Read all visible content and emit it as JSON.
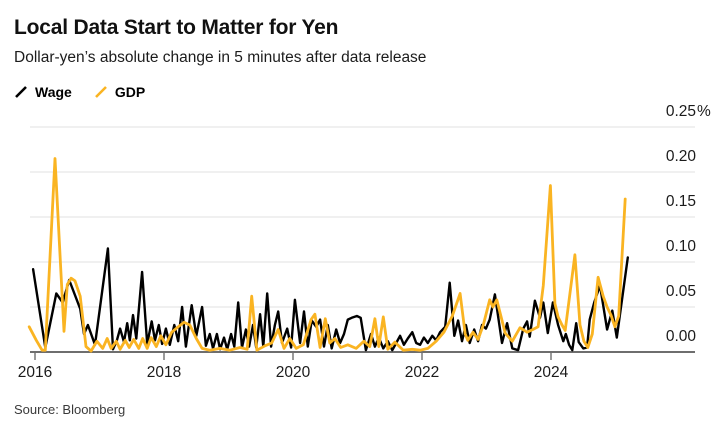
{
  "header": {
    "title": "Local Data Start to Matter for Yen",
    "subtitle": "Dollar-yen’s absolute change in 5 minutes after data release"
  },
  "legend": [
    {
      "label": "Wage",
      "color": "#000000"
    },
    {
      "label": "GDP",
      "color": "#FAB422"
    }
  ],
  "source": "Source: Bloomberg",
  "colors": {
    "wage_line": "#000000",
    "gdp_line": "#FAB422",
    "gridline": "#e2e2e2",
    "axis_line": "#6e6e6e",
    "tick_label": "#1b1b1b"
  },
  "chart_data": {
    "type": "line",
    "title": "Local Data Start to Matter for Yen",
    "subtitle": "Dollar-yen’s absolute change in 5 minutes after data release",
    "unit": "percent",
    "grid": "horizontal-only",
    "legend_position": "top-left",
    "x_axis": {
      "range": [
        2015.88,
        2026.2
      ],
      "ticks": [
        {
          "v": 2016,
          "label": "2016"
        },
        {
          "v": 2018,
          "label": "2018"
        },
        {
          "v": 2020,
          "label": "2020"
        },
        {
          "v": 2022,
          "label": "2022"
        },
        {
          "v": 2024,
          "label": "2024"
        }
      ]
    },
    "y_axis": {
      "range": [
        0,
        0.25
      ],
      "ticks": [
        {
          "v": 0.0,
          "label": "0.00",
          "suffix": ""
        },
        {
          "v": 0.05,
          "label": "0.05",
          "suffix": ""
        },
        {
          "v": 0.1,
          "label": "0.10",
          "suffix": ""
        },
        {
          "v": 0.15,
          "label": "0.15",
          "suffix": ""
        },
        {
          "v": 0.2,
          "label": "0.20",
          "suffix": ""
        },
        {
          "v": 0.25,
          "label": "0.25",
          "suffix": "%"
        }
      ]
    },
    "series": [
      {
        "name": "Wage",
        "color": "#000000",
        "points": [
          [
            2015.97,
            0.092
          ],
          [
            2016.16,
            0.005
          ],
          [
            2016.33,
            0.065
          ],
          [
            2016.43,
            0.055
          ],
          [
            2016.53,
            0.08
          ],
          [
            2016.7,
            0.048
          ],
          [
            2016.76,
            0.02
          ],
          [
            2016.82,
            0.03
          ],
          [
            2016.93,
            0.008
          ],
          [
            2017.13,
            0.115
          ],
          [
            2017.21,
            0.003
          ],
          [
            2017.27,
            0.013
          ],
          [
            2017.32,
            0.026
          ],
          [
            2017.38,
            0.011
          ],
          [
            2017.43,
            0.032
          ],
          [
            2017.47,
            0.013
          ],
          [
            2017.52,
            0.041
          ],
          [
            2017.57,
            0.015
          ],
          [
            2017.66,
            0.089
          ],
          [
            2017.74,
            0.009
          ],
          [
            2017.81,
            0.034
          ],
          [
            2017.86,
            0.013
          ],
          [
            2017.92,
            0.03
          ],
          [
            2017.97,
            0.009
          ],
          [
            2018.03,
            0.026
          ],
          [
            2018.09,
            0.008
          ],
          [
            2018.16,
            0.03
          ],
          [
            2018.22,
            0.012
          ],
          [
            2018.28,
            0.05
          ],
          [
            2018.34,
            0.006
          ],
          [
            2018.43,
            0.052
          ],
          [
            2018.5,
            0.018
          ],
          [
            2018.59,
            0.05
          ],
          [
            2018.65,
            0.007
          ],
          [
            2018.71,
            0.02
          ],
          [
            2018.76,
            0.004
          ],
          [
            2018.82,
            0.02
          ],
          [
            2018.87,
            0.003
          ],
          [
            2018.93,
            0.016
          ],
          [
            2018.98,
            0.003
          ],
          [
            2019.04,
            0.02
          ],
          [
            2019.09,
            0.006
          ],
          [
            2019.15,
            0.055
          ],
          [
            2019.21,
            0.005
          ],
          [
            2019.27,
            0.025
          ],
          [
            2019.32,
            0.006
          ],
          [
            2019.38,
            0.03
          ],
          [
            2019.43,
            0.005
          ],
          [
            2019.49,
            0.042
          ],
          [
            2019.54,
            0.006
          ],
          [
            2019.6,
            0.065
          ],
          [
            2019.66,
            0.006
          ],
          [
            2019.72,
            0.03
          ],
          [
            2019.77,
            0.045
          ],
          [
            2019.83,
            0.01
          ],
          [
            2019.91,
            0.026
          ],
          [
            2019.97,
            0.005
          ],
          [
            2020.03,
            0.058
          ],
          [
            2020.11,
            0.01
          ],
          [
            2020.17,
            0.045
          ],
          [
            2020.23,
            0.006
          ],
          [
            2020.29,
            0.035
          ],
          [
            2020.36,
            0.028
          ],
          [
            2020.42,
            0.036
          ],
          [
            2020.48,
            0.006
          ],
          [
            2020.54,
            0.03
          ],
          [
            2020.6,
            0.004
          ],
          [
            2020.67,
            0.025
          ],
          [
            2020.73,
            0.01
          ],
          [
            2020.79,
            0.02
          ],
          [
            2020.85,
            0.036
          ],
          [
            2020.91,
            0.038
          ],
          [
            2020.99,
            0.04
          ],
          [
            2021.05,
            0.038
          ],
          [
            2021.13,
            0.002
          ],
          [
            2021.21,
            0.02
          ],
          [
            2021.27,
            0.006
          ],
          [
            2021.33,
            0.016
          ],
          [
            2021.4,
            0.004
          ],
          [
            2021.47,
            0.012
          ],
          [
            2021.54,
            0.002
          ],
          [
            2021.6,
            0.01
          ],
          [
            2021.66,
            0.018
          ],
          [
            2021.72,
            0.008
          ],
          [
            2021.78,
            0.015
          ],
          [
            2021.85,
            0.022
          ],
          [
            2021.91,
            0.01
          ],
          [
            2021.97,
            0.008
          ],
          [
            2022.03,
            0.016
          ],
          [
            2022.09,
            0.01
          ],
          [
            2022.16,
            0.018
          ],
          [
            2022.22,
            0.013
          ],
          [
            2022.28,
            0.022
          ],
          [
            2022.36,
            0.028
          ],
          [
            2022.43,
            0.077
          ],
          [
            2022.5,
            0.018
          ],
          [
            2022.56,
            0.035
          ],
          [
            2022.62,
            0.012
          ],
          [
            2022.68,
            0.03
          ],
          [
            2022.74,
            0.01
          ],
          [
            2022.81,
            0.025
          ],
          [
            2022.87,
            0.012
          ],
          [
            2022.93,
            0.03
          ],
          [
            2022.99,
            0.026
          ],
          [
            2023.05,
            0.036
          ],
          [
            2023.13,
            0.064
          ],
          [
            2023.24,
            0.01
          ],
          [
            2023.32,
            0.032
          ],
          [
            2023.4,
            0.004
          ],
          [
            2023.49,
            0.002
          ],
          [
            2023.57,
            0.026
          ],
          [
            2023.63,
            0.034
          ],
          [
            2023.67,
            0.017
          ],
          [
            2023.75,
            0.057
          ],
          [
            2023.83,
            0.038
          ],
          [
            2023.88,
            0.055
          ],
          [
            2023.95,
            0.021
          ],
          [
            2024.03,
            0.055
          ],
          [
            2024.11,
            0.03
          ],
          [
            2024.19,
            0.012
          ],
          [
            2024.23,
            0.02
          ],
          [
            2024.28,
            0.008
          ],
          [
            2024.33,
            0.002
          ],
          [
            2024.39,
            0.032
          ],
          [
            2024.43,
            0.011
          ],
          [
            2024.5,
            0.004
          ],
          [
            2024.56,
            0.005
          ],
          [
            2024.6,
            0.036
          ],
          [
            2024.67,
            0.055
          ],
          [
            2024.76,
            0.074
          ],
          [
            2024.87,
            0.025
          ],
          [
            2024.95,
            0.046
          ],
          [
            2025.02,
            0.016
          ],
          [
            2025.19,
            0.105
          ]
        ]
      },
      {
        "name": "GDP",
        "color": "#FAB422",
        "points": [
          [
            2015.91,
            0.028
          ],
          [
            2016.02,
            0.013
          ],
          [
            2016.11,
            0.002
          ],
          [
            2016.16,
            0.002
          ],
          [
            2016.31,
            0.215
          ],
          [
            2016.45,
            0.023
          ],
          [
            2016.5,
            0.075
          ],
          [
            2016.56,
            0.082
          ],
          [
            2016.62,
            0.079
          ],
          [
            2016.7,
            0.062
          ],
          [
            2016.79,
            0.006
          ],
          [
            2016.87,
            0.001
          ],
          [
            2016.96,
            0.012
          ],
          [
            2017.05,
            0.004
          ],
          [
            2017.12,
            0.015
          ],
          [
            2017.18,
            0.004
          ],
          [
            2017.26,
            0.012
          ],
          [
            2017.32,
            0.003
          ],
          [
            2017.4,
            0.013
          ],
          [
            2017.46,
            0.005
          ],
          [
            2017.53,
            0.014
          ],
          [
            2017.61,
            0.004
          ],
          [
            2017.67,
            0.015
          ],
          [
            2017.74,
            0.004
          ],
          [
            2017.8,
            0.016
          ],
          [
            2017.88,
            0.006
          ],
          [
            2017.95,
            0.018
          ],
          [
            2018.03,
            0.008
          ],
          [
            2018.12,
            0.022
          ],
          [
            2018.22,
            0.028
          ],
          [
            2018.31,
            0.033
          ],
          [
            2018.4,
            0.03
          ],
          [
            2018.5,
            0.015
          ],
          [
            2018.59,
            0.004
          ],
          [
            2018.71,
            0.002
          ],
          [
            2018.87,
            0.004
          ],
          [
            2019.02,
            0.002
          ],
          [
            2019.18,
            0.005
          ],
          [
            2019.29,
            0.003
          ],
          [
            2019.36,
            0.062
          ],
          [
            2019.44,
            0.002
          ],
          [
            2019.57,
            0.007
          ],
          [
            2019.67,
            0.01
          ],
          [
            2019.77,
            0.025
          ],
          [
            2019.86,
            0.004
          ],
          [
            2019.95,
            0.015
          ],
          [
            2020.05,
            0.004
          ],
          [
            2020.16,
            0.008
          ],
          [
            2020.28,
            0.036
          ],
          [
            2020.34,
            0.042
          ],
          [
            2020.42,
            0.005
          ],
          [
            2020.5,
            0.037
          ],
          [
            2020.57,
            0.01
          ],
          [
            2020.65,
            0.015
          ],
          [
            2020.74,
            0.005
          ],
          [
            2020.85,
            0.008
          ],
          [
            2020.98,
            0.004
          ],
          [
            2021.1,
            0.012
          ],
          [
            2021.19,
            0.006
          ],
          [
            2021.27,
            0.037
          ],
          [
            2021.33,
            0.006
          ],
          [
            2021.4,
            0.039
          ],
          [
            2021.47,
            0.003
          ],
          [
            2021.58,
            0.011
          ],
          [
            2021.71,
            0.002
          ],
          [
            2021.85,
            0.003
          ],
          [
            2021.97,
            0.002
          ],
          [
            2022.09,
            0.004
          ],
          [
            2022.22,
            0.012
          ],
          [
            2022.34,
            0.022
          ],
          [
            2022.47,
            0.04
          ],
          [
            2022.59,
            0.065
          ],
          [
            2022.67,
            0.02
          ],
          [
            2022.71,
            0.013
          ],
          [
            2022.79,
            0.022
          ],
          [
            2022.87,
            0.014
          ],
          [
            2022.95,
            0.03
          ],
          [
            2023.05,
            0.058
          ],
          [
            2023.1,
            0.05
          ],
          [
            2023.16,
            0.058
          ],
          [
            2023.29,
            0.021
          ],
          [
            2023.4,
            0.012
          ],
          [
            2023.52,
            0.027
          ],
          [
            2023.63,
            0.022
          ],
          [
            2023.72,
            0.025
          ],
          [
            2023.8,
            0.028
          ],
          [
            2023.88,
            0.074
          ],
          [
            2023.99,
            0.185
          ],
          [
            2024.06,
            0.054
          ],
          [
            2024.11,
            0.039
          ],
          [
            2024.17,
            0.03
          ],
          [
            2024.22,
            0.024
          ],
          [
            2024.37,
            0.108
          ],
          [
            2024.45,
            0.03
          ],
          [
            2024.51,
            0.012
          ],
          [
            2024.57,
            0.005
          ],
          [
            2024.64,
            0.02
          ],
          [
            2024.73,
            0.083
          ],
          [
            2024.81,
            0.062
          ],
          [
            2024.87,
            0.05
          ],
          [
            2024.93,
            0.041
          ],
          [
            2024.99,
            0.028
          ],
          [
            2025.05,
            0.04
          ],
          [
            2025.15,
            0.17
          ]
        ]
      }
    ]
  }
}
